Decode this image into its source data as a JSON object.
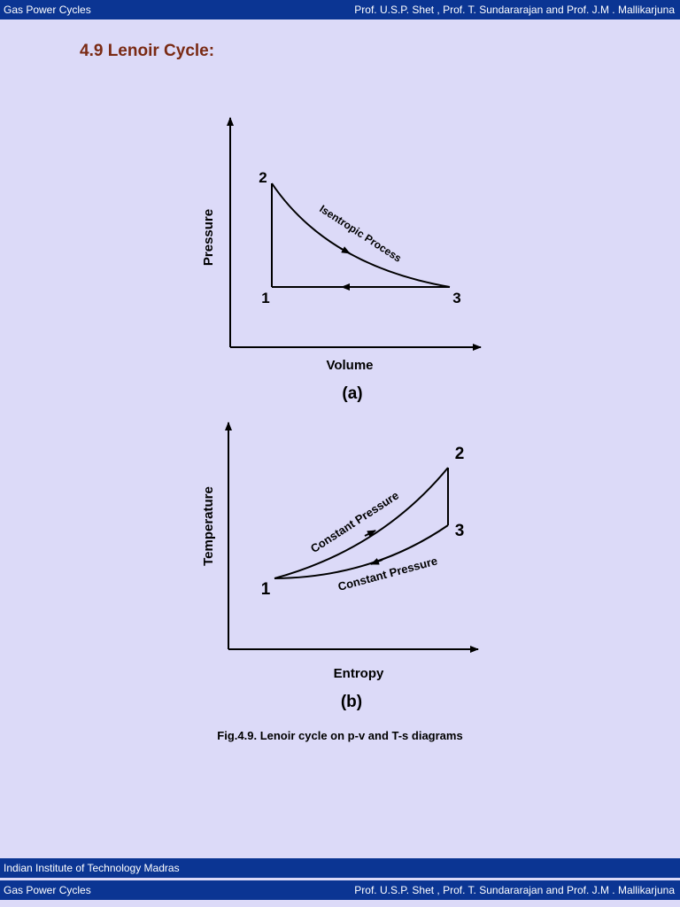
{
  "header": {
    "left": "Gas Power Cycles",
    "right": "Prof. U.S.P. Shet , Prof. T. Sundararajan and Prof. J.M . Mallikarjuna"
  },
  "section_title": "4.9 Lenoir Cycle:",
  "figure_a": {
    "y_label": "Pressure",
    "x_label": "Volume",
    "points": [
      "2",
      "1",
      "3"
    ],
    "process_label": "Isentropic Process",
    "caption": "(a)"
  },
  "figure_b": {
    "y_label": "Temperature",
    "x_label": "Entropy",
    "points": [
      "2",
      "3",
      "1"
    ],
    "upper_label": "Constant Pressure",
    "lower_label": "Constant Pressure",
    "caption": "(b)"
  },
  "figure_caption": "Fig.4.9. Lenoir cycle on p-v and T-s diagrams",
  "footer": {
    "institute": "Indian Institute of Technology Madras",
    "left": "Gas Power Cycles",
    "right": "Prof. U.S.P. Shet , Prof. T. Sundararajan and Prof. J.M . Mallikarjuna"
  }
}
